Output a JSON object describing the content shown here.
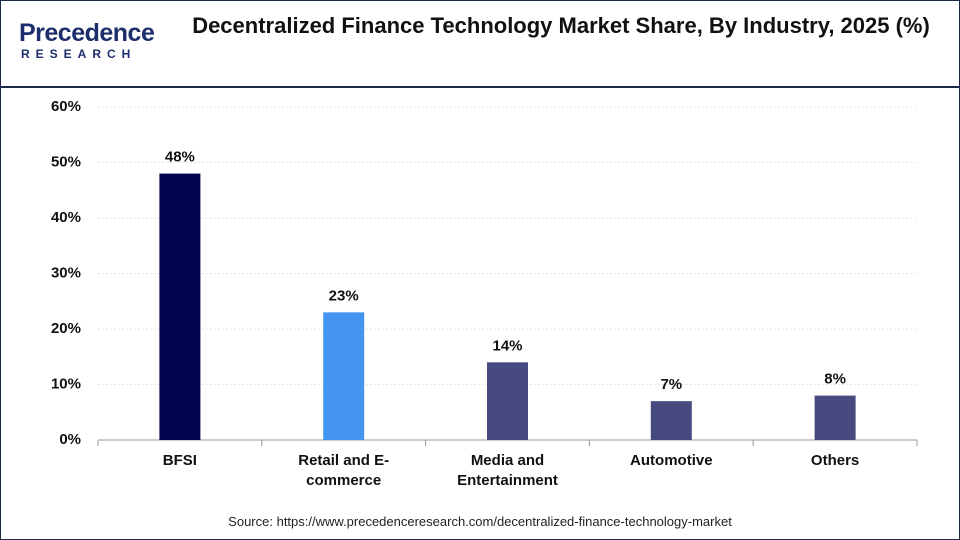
{
  "logo": {
    "name": "Precedence",
    "tagline": "RESEARCH"
  },
  "chart_data": {
    "type": "bar",
    "title": "Decentralized Finance Technology Market Share, By Industry, 2025 (%)",
    "categories": [
      "BFSI",
      "Retail and E-commerce",
      "Media and Entertainment",
      "Automotive",
      "Others"
    ],
    "values": [
      48,
      23,
      14,
      7,
      8
    ],
    "value_labels": [
      "48%",
      "23%",
      "14%",
      "7%",
      "8%"
    ],
    "colors": [
      "#02034f",
      "#4495f0",
      "#464a7e",
      "#464a7e",
      "#464a7e"
    ],
    "ylim": [
      0,
      60
    ],
    "yticks": [
      {
        "value": 0,
        "label": "0%"
      },
      {
        "value": 10,
        "label": "10%"
      },
      {
        "value": 20,
        "label": "20%"
      },
      {
        "value": 30,
        "label": "30%"
      },
      {
        "value": 40,
        "label": "40%"
      },
      {
        "value": 50,
        "label": "50%"
      },
      {
        "value": 60,
        "label": "60%"
      }
    ],
    "grid": true,
    "source": "Source: https://www.precedenceresearch.com/decentralized-finance-technology-market"
  }
}
